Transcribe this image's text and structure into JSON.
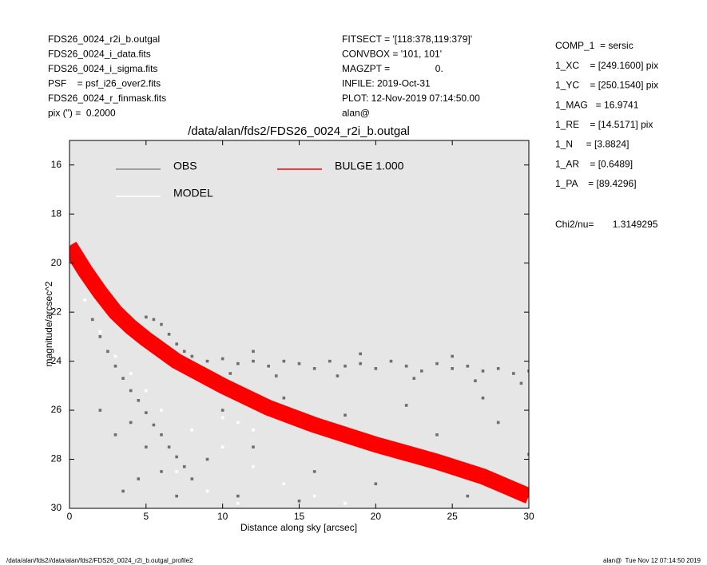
{
  "header": {
    "left": [
      "FDS26_0024_r2i_b.outgal",
      "FDS26_0024_i_data.fits",
      "FDS26_0024_i_sigma.fits",
      "PSF    = psf_i26_over2.fits",
      "FDS26_0024_r_finmask.fits",
      "pix (\") =  0.2000"
    ],
    "middle": [
      "FITSECT = '[118:378,119:379]'",
      "CONVBOX = '101, 101'",
      "MAGZPT =                 0.",
      "INFILE: 2019-Oct-31",
      "PLOT: 12-Nov-2019 07:14:50.00",
      "alan@"
    ],
    "right": [
      "COMP_1  = sersic",
      "1_XC    = [249.1600] pix",
      "1_YC    = [250.1540] pix",
      "1_MAG   = 16.9741",
      "1_RE    = [14.5171] pix",
      "1_N     = [3.8824]",
      "1_AR    = [0.6489]",
      "1_PA    = [89.4296]"
    ],
    "chi2": "Chi2/nu=       1.3149295"
  },
  "footer": {
    "left": "/data/alan/fds2//data/alan/fds2/FDS26_0024_r2i_b.outgal_profile2",
    "right": "alan@  Tue Nov 12 07:14:50 2019"
  },
  "chart_data": {
    "type": "scatter",
    "title": "/data/alan/fds2/FDS26_0024_r2i_b.outgal",
    "xlabel": "Distance along sky [arcsec]",
    "ylabel": "magnitude/arcsec^2",
    "xlim": [
      0,
      30
    ],
    "xticks": [
      0,
      5,
      10,
      15,
      20,
      25,
      30
    ],
    "ylim": [
      30,
      15
    ],
    "yticks": [
      16,
      18,
      20,
      22,
      24,
      26,
      28,
      30
    ],
    "series": [
      {
        "name": "OBS",
        "color": "#6e6e6e",
        "x": [
          0.2,
          0.5,
          1,
          1.5,
          2,
          2.5,
          3,
          3.5,
          4,
          4.5,
          5,
          5.5,
          6,
          6.5,
          7,
          7.5,
          8,
          9,
          10,
          11,
          12,
          13,
          14,
          15,
          16,
          17,
          18,
          19,
          20,
          21,
          22,
          23,
          24,
          25,
          26,
          27,
          28,
          29,
          30,
          10.5,
          13.5,
          17.5,
          22.5,
          26.5,
          29.5,
          12,
          19,
          25,
          1.5,
          2,
          2.5,
          3,
          3.5,
          4,
          4.5,
          5,
          5.5,
          6,
          6.5,
          7,
          7.5,
          8,
          4,
          5,
          6,
          3,
          4.5,
          7,
          2,
          3.5,
          10,
          12,
          14,
          16,
          18,
          20,
          22,
          24,
          26,
          28,
          30,
          11,
          15,
          9,
          27,
          29
        ],
        "values": [
          19.3,
          19.6,
          20.3,
          20.9,
          21.3,
          21.6,
          21.9,
          22.2,
          22.5,
          22.6,
          22.2,
          22.3,
          22.5,
          22.9,
          23.3,
          23.6,
          23.8,
          24.0,
          23.9,
          24.1,
          24.0,
          24.2,
          24.0,
          24.1,
          24.3,
          24.0,
          24.2,
          24.1,
          24.3,
          24.0,
          24.2,
          24.4,
          24.1,
          24.3,
          24.2,
          24.4,
          24.3,
          24.5,
          24.4,
          24.5,
          24.6,
          24.6,
          24.7,
          24.8,
          24.9,
          23.6,
          23.7,
          23.8,
          22.3,
          23.0,
          23.6,
          24.2,
          24.7,
          25.2,
          25.6,
          26.1,
          26.6,
          27.0,
          27.5,
          27.9,
          28.3,
          28.8,
          26.5,
          27.5,
          28.5,
          27.0,
          28.8,
          29.5,
          26.0,
          29.3,
          26.0,
          27.5,
          25.5,
          28.5,
          26.2,
          29.0,
          25.8,
          27.0,
          29.5,
          26.5,
          27.8,
          29.5,
          29.7,
          28.0,
          25.5,
          29.0
        ]
      },
      {
        "name": "MODEL",
        "color": "#ffffff",
        "x": [
          1,
          2,
          3,
          4,
          5,
          6,
          8,
          10,
          12,
          14,
          16,
          18,
          7,
          9,
          11,
          10,
          11,
          12
        ],
        "values": [
          21.5,
          22.8,
          23.8,
          24.5,
          25.2,
          26.0,
          26.8,
          27.5,
          28.3,
          29.0,
          29.5,
          29.8,
          28.5,
          29.3,
          29.8,
          26.3,
          26.5,
          26.8
        ]
      },
      {
        "name": "BULGE 1.000",
        "color": "#ff0000",
        "x": [
          0,
          1,
          2,
          3,
          4,
          5,
          7,
          10,
          13,
          16,
          20,
          24,
          27,
          30
        ],
        "values": [
          19.3,
          20.3,
          21.2,
          22.0,
          22.6,
          23.1,
          24.0,
          25.0,
          25.9,
          26.6,
          27.4,
          28.1,
          28.7,
          29.5
        ]
      }
    ]
  }
}
